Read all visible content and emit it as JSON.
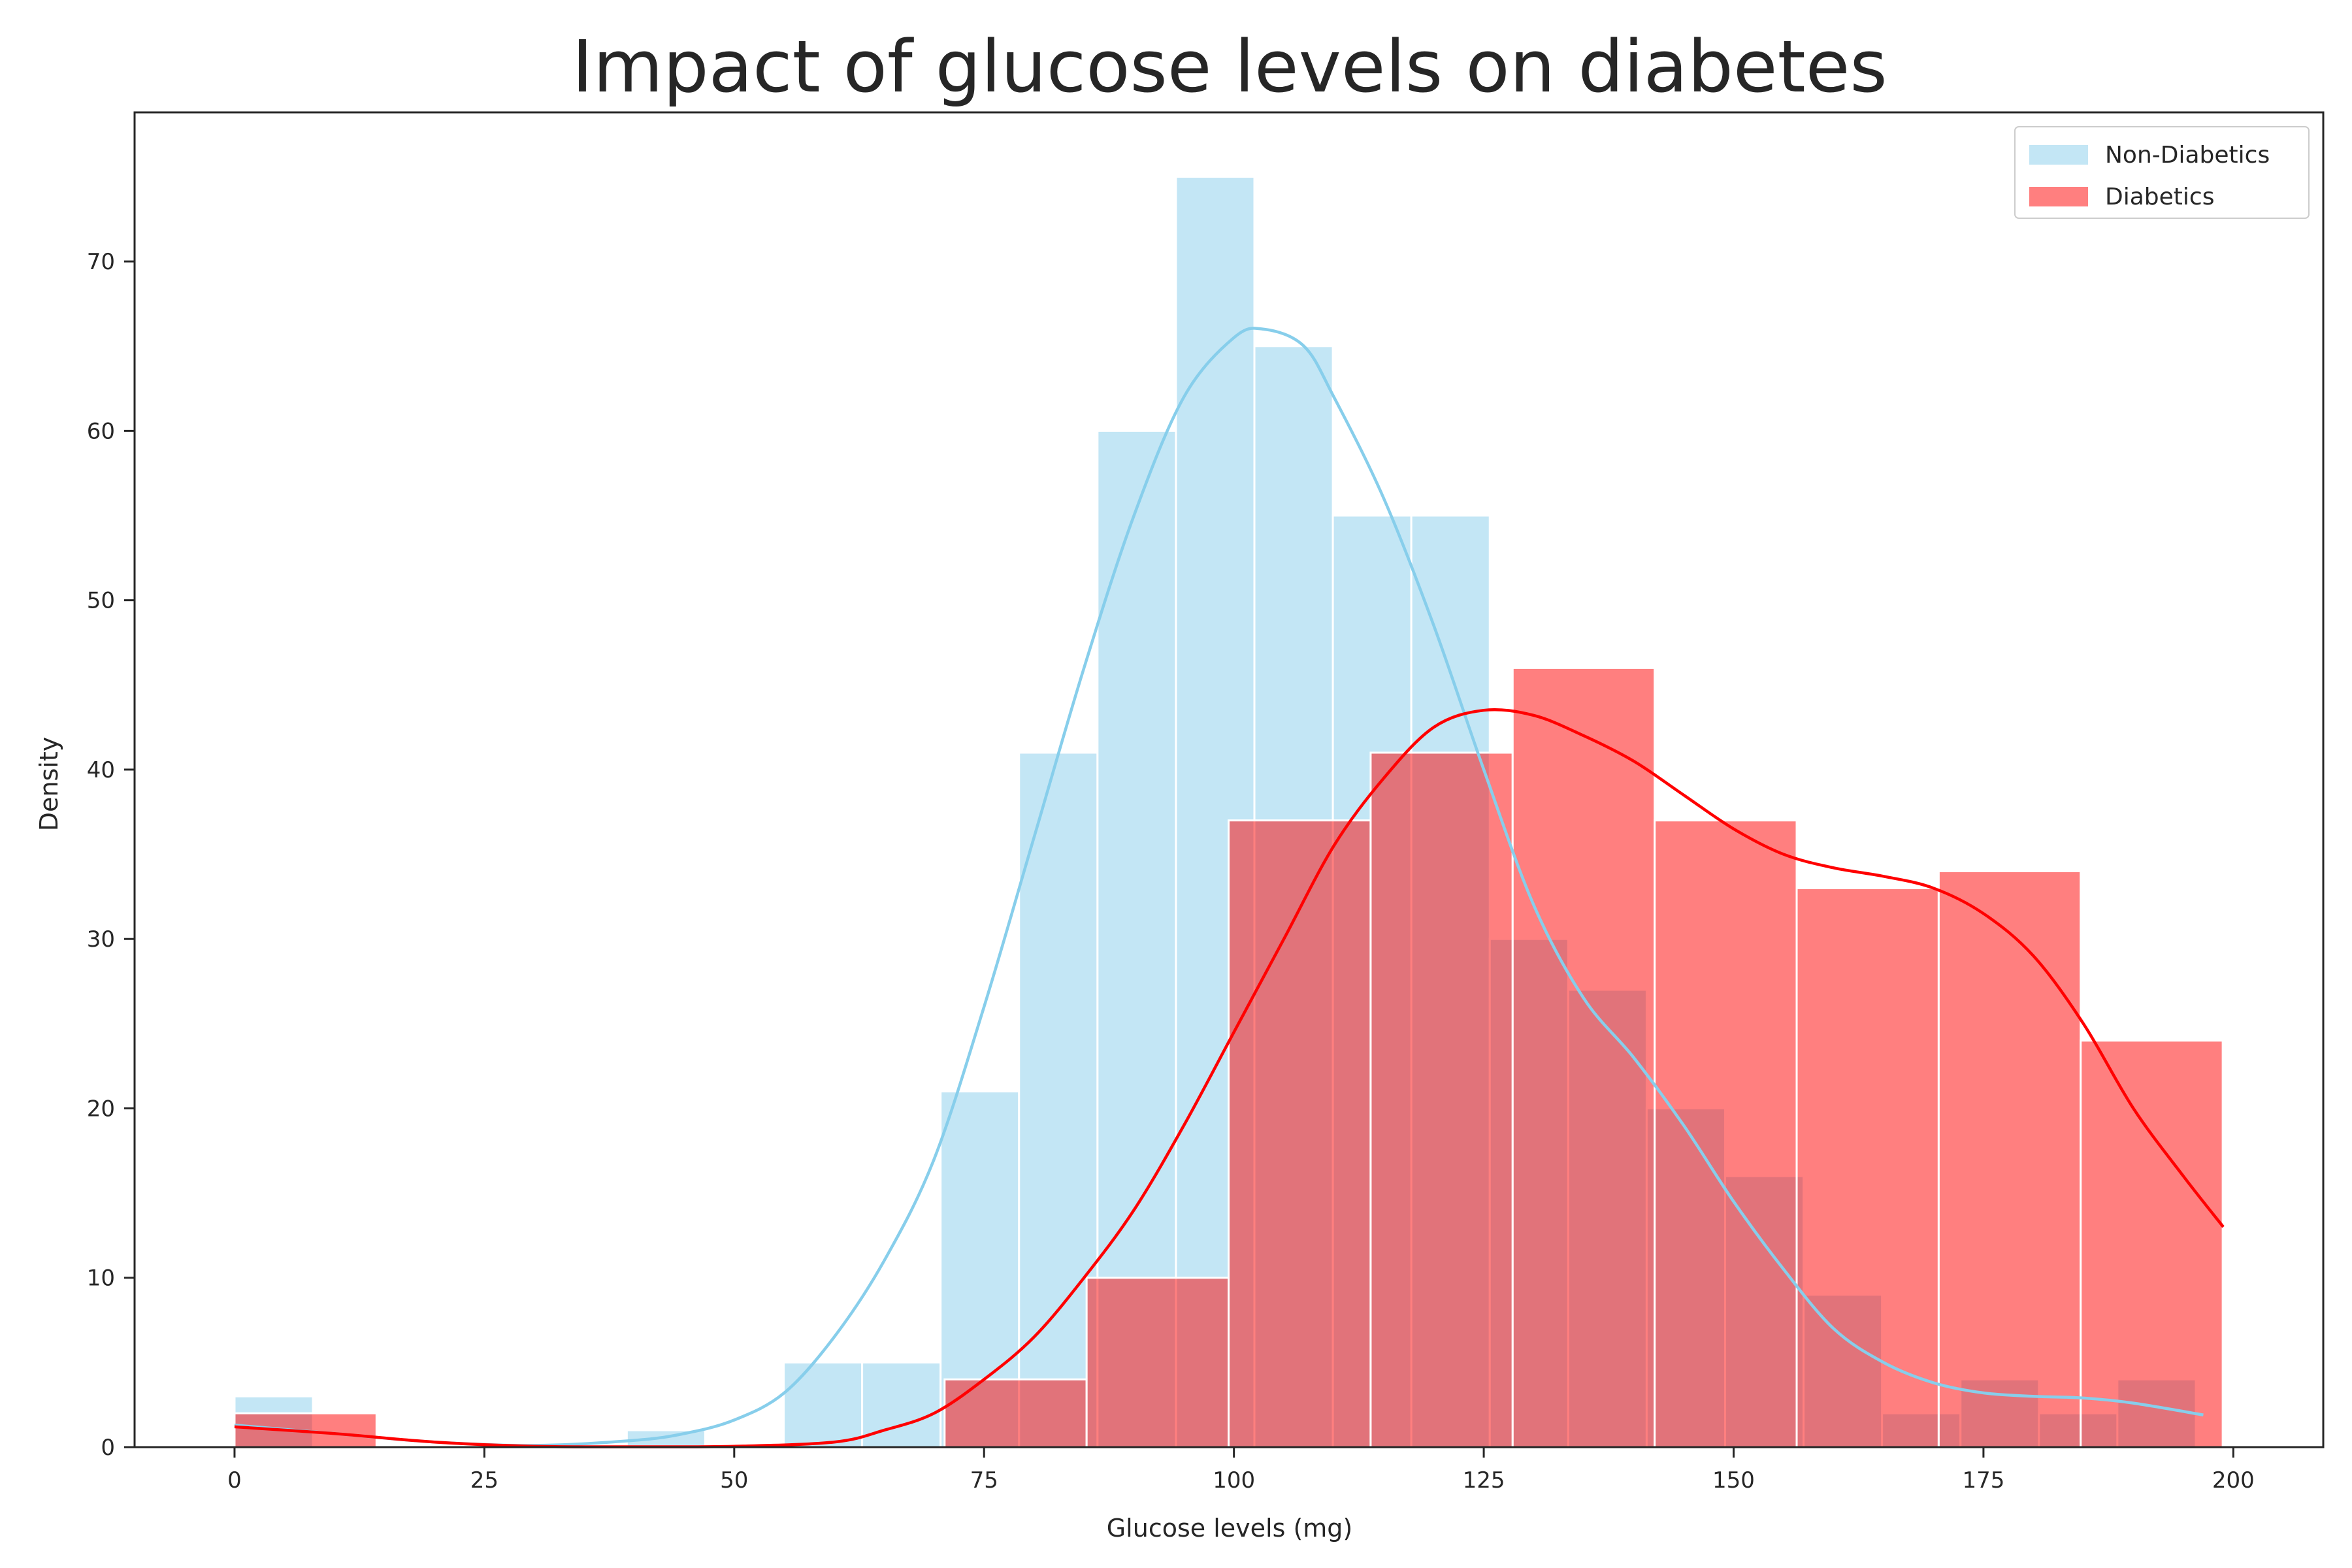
{
  "chart_data": {
    "type": "histogram",
    "title": "Impact of glucose levels on diabetes",
    "xlabel": "Glucose levels (mg)",
    "ylabel": "Density",
    "xlim": [
      -10,
      209
    ],
    "ylim": [
      0,
      78.8
    ],
    "x_ticks": [
      0,
      25,
      50,
      75,
      100,
      125,
      150,
      175,
      200
    ],
    "y_ticks": [
      0,
      10,
      20,
      30,
      40,
      50,
      60,
      70
    ],
    "grid": false,
    "legend_position": "top-right",
    "series": [
      {
        "name": "Non-Diabetics",
        "color": "#87CEEB",
        "bar_opacity": 0.5,
        "bins": [
          {
            "x0": 0,
            "x1": 7.85,
            "value": 3
          },
          {
            "x0": 7.85,
            "x1": 15.7,
            "value": 0
          },
          {
            "x0": 15.7,
            "x1": 23.55,
            "value": 0
          },
          {
            "x0": 23.55,
            "x1": 31.4,
            "value": 0
          },
          {
            "x0": 31.4,
            "x1": 39.25,
            "value": 0
          },
          {
            "x0": 39.25,
            "x1": 47.1,
            "value": 1
          },
          {
            "x0": 47.1,
            "x1": 54.95,
            "value": 0
          },
          {
            "x0": 54.95,
            "x1": 62.8,
            "value": 5
          },
          {
            "x0": 62.8,
            "x1": 70.65,
            "value": 5
          },
          {
            "x0": 70.65,
            "x1": 78.5,
            "value": 21
          },
          {
            "x0": 78.5,
            "x1": 86.35,
            "value": 41
          },
          {
            "x0": 86.35,
            "x1": 94.2,
            "value": 60
          },
          {
            "x0": 94.2,
            "x1": 102.05,
            "value": 75
          },
          {
            "x0": 102.05,
            "x1": 109.9,
            "value": 65
          },
          {
            "x0": 109.9,
            "x1": 117.75,
            "value": 55
          },
          {
            "x0": 117.75,
            "x1": 125.6,
            "value": 55
          },
          {
            "x0": 125.6,
            "x1": 133.45,
            "value": 30
          },
          {
            "x0": 133.45,
            "x1": 141.3,
            "value": 27
          },
          {
            "x0": 141.3,
            "x1": 149.15,
            "value": 20
          },
          {
            "x0": 149.15,
            "x1": 157.0,
            "value": 16
          },
          {
            "x0": 157.0,
            "x1": 164.85,
            "value": 9
          },
          {
            "x0": 164.85,
            "x1": 172.7,
            "value": 2
          },
          {
            "x0": 172.7,
            "x1": 180.55,
            "value": 4
          },
          {
            "x0": 180.55,
            "x1": 188.4,
            "value": 2
          },
          {
            "x0": 188.4,
            "x1": 196.25,
            "value": 4
          }
        ],
        "kde": [
          [
            0,
            1.3
          ],
          [
            10,
            0.8
          ],
          [
            20,
            0.3
          ],
          [
            30,
            0.1
          ],
          [
            40,
            0.4
          ],
          [
            45,
            0.8
          ],
          [
            50,
            1.6
          ],
          [
            55,
            3.2
          ],
          [
            60,
            6.5
          ],
          [
            65,
            11
          ],
          [
            70,
            17
          ],
          [
            75,
            26
          ],
          [
            80,
            36
          ],
          [
            85,
            46
          ],
          [
            90,
            55
          ],
          [
            95,
            62
          ],
          [
            100,
            65.5
          ],
          [
            103,
            66
          ],
          [
            107,
            65
          ],
          [
            110,
            62
          ],
          [
            115,
            56
          ],
          [
            120,
            48.5
          ],
          [
            125,
            40
          ],
          [
            130,
            32
          ],
          [
            135,
            26.5
          ],
          [
            140,
            23
          ],
          [
            145,
            19
          ],
          [
            150,
            14.5
          ],
          [
            155,
            10.5
          ],
          [
            160,
            7
          ],
          [
            165,
            5
          ],
          [
            170,
            3.8
          ],
          [
            175,
            3.2
          ],
          [
            180,
            3
          ],
          [
            185,
            2.9
          ],
          [
            190,
            2.6
          ],
          [
            197,
            1.9
          ]
        ]
      },
      {
        "name": "Diabetics",
        "color": "#FF0000",
        "bar_opacity": 0.5,
        "bins": [
          {
            "x0": 0,
            "x1": 14.21,
            "value": 2
          },
          {
            "x0": 14.21,
            "x1": 28.42,
            "value": 0
          },
          {
            "x0": 28.42,
            "x1": 42.63,
            "value": 0
          },
          {
            "x0": 42.63,
            "x1": 56.84,
            "value": 0
          },
          {
            "x0": 56.84,
            "x1": 71.05,
            "value": 0
          },
          {
            "x0": 71.05,
            "x1": 85.26,
            "value": 4
          },
          {
            "x0": 85.26,
            "x1": 99.47,
            "value": 10
          },
          {
            "x0": 99.47,
            "x1": 113.68,
            "value": 37
          },
          {
            "x0": 113.68,
            "x1": 127.89,
            "value": 41
          },
          {
            "x0": 127.89,
            "x1": 142.1,
            "value": 46
          },
          {
            "x0": 142.1,
            "x1": 156.31,
            "value": 37
          },
          {
            "x0": 156.31,
            "x1": 170.52,
            "value": 33
          },
          {
            "x0": 170.52,
            "x1": 184.73,
            "value": 34
          },
          {
            "x0": 184.73,
            "x1": 198.94,
            "value": 24
          }
        ],
        "kde": [
          [
            0,
            1.2
          ],
          [
            10,
            0.8
          ],
          [
            20,
            0.3
          ],
          [
            30,
            0.05
          ],
          [
            40,
            0.02
          ],
          [
            50,
            0.05
          ],
          [
            60,
            0.3
          ],
          [
            65,
            1
          ],
          [
            70,
            2
          ],
          [
            75,
            4
          ],
          [
            80,
            6.5
          ],
          [
            85,
            10
          ],
          [
            90,
            14
          ],
          [
            95,
            19
          ],
          [
            100,
            24.5
          ],
          [
            105,
            30
          ],
          [
            110,
            35.5
          ],
          [
            115,
            39.5
          ],
          [
            120,
            42.5
          ],
          [
            125,
            43.5
          ],
          [
            130,
            43.2
          ],
          [
            135,
            42
          ],
          [
            140,
            40.5
          ],
          [
            145,
            38.5
          ],
          [
            150,
            36.5
          ],
          [
            155,
            35
          ],
          [
            160,
            34.2
          ],
          [
            165,
            33.7
          ],
          [
            170,
            33
          ],
          [
            175,
            31.5
          ],
          [
            180,
            29
          ],
          [
            185,
            25
          ],
          [
            190,
            20
          ],
          [
            195,
            16
          ],
          [
            199,
            13
          ]
        ]
      }
    ]
  }
}
